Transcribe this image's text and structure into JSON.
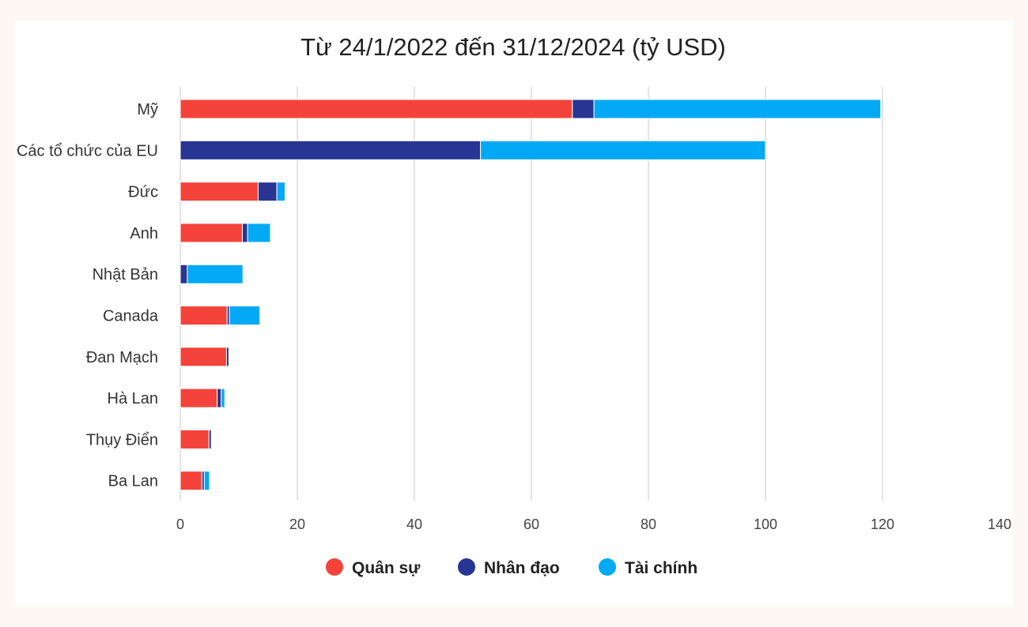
{
  "chart_data": {
    "type": "bar",
    "orientation": "horizontal",
    "stacked": true,
    "title": "Từ 24/1/2022 đến 31/12/2024 (tỷ USD)",
    "categories": [
      "Mỹ",
      "Các tổ chức của EU",
      "Đức",
      "Anh",
      "Nhật Bản",
      "Canada",
      "Đan Mạch",
      "Hà Lan",
      "Thụy Điển",
      "Ba Lan"
    ],
    "series": [
      {
        "name": "Quân sự",
        "color": "#f4433a",
        "values": [
          67.0,
          0,
          13.3,
          10.6,
          0,
          8.0,
          7.9,
          6.3,
          4.9,
          3.7
        ]
      },
      {
        "name": "Nhân đạo",
        "color": "#283593",
        "values": [
          3.7,
          51.3,
          3.2,
          0.9,
          1.2,
          0.4,
          0.4,
          0.7,
          0.4,
          0.4
        ]
      },
      {
        "name": "Tài chính",
        "color": "#03a9f4",
        "values": [
          49.0,
          48.7,
          1.4,
          3.9,
          9.5,
          5.2,
          0,
          0.6,
          0,
          0.9
        ]
      }
    ],
    "xlim": [
      0,
      140
    ],
    "xticks": [
      0,
      20,
      40,
      60,
      80,
      100,
      120,
      140
    ],
    "grid": true,
    "legend_position": "bottom"
  }
}
